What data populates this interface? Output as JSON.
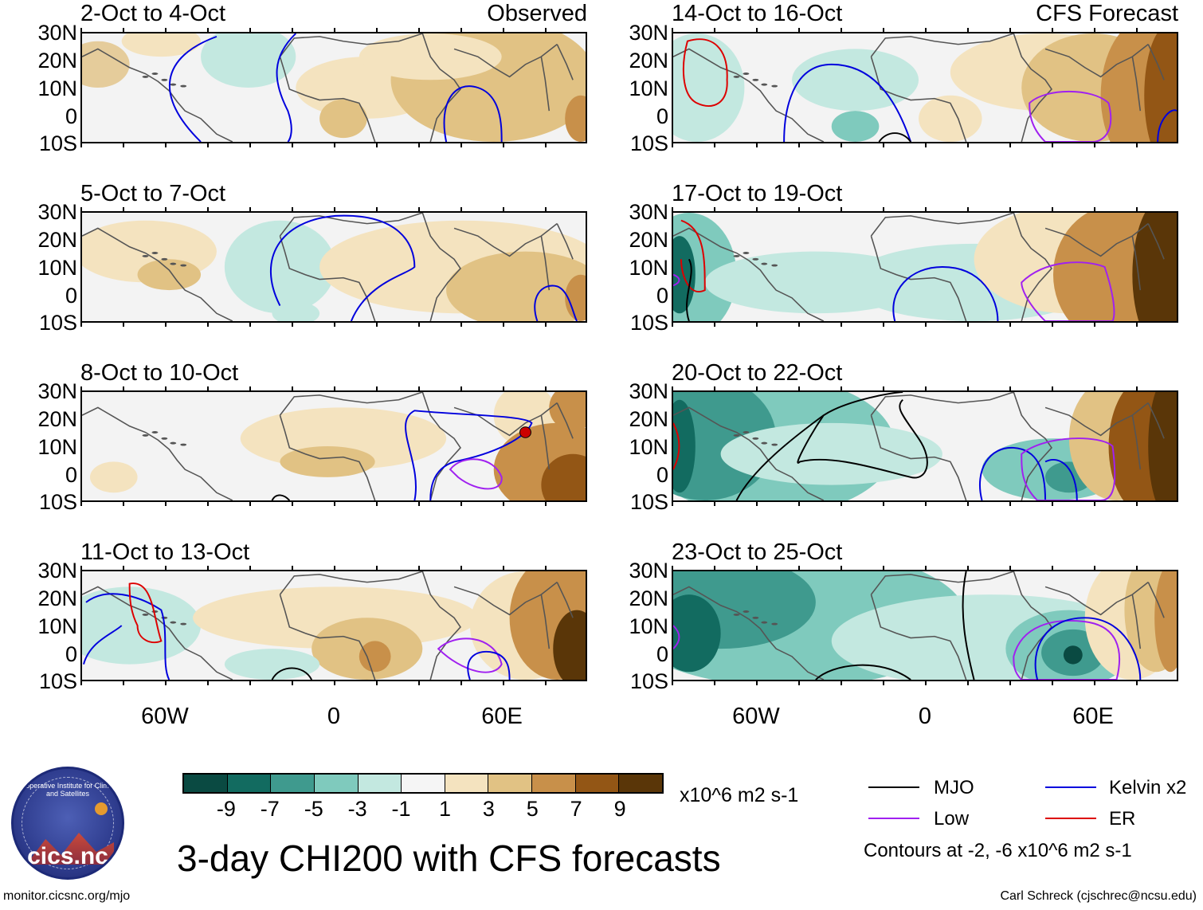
{
  "title": "3-day CHI200 with CFS forecasts",
  "panel_labels": {
    "observed": "Observed",
    "forecast": "CFS Forecast"
  },
  "panels": [
    {
      "period": "2-Oct to 4-Oct",
      "type": "observed"
    },
    {
      "period": "5-Oct to 7-Oct",
      "type": "observed"
    },
    {
      "period": "8-Oct to 10-Oct",
      "type": "observed"
    },
    {
      "period": "11-Oct to 13-Oct",
      "type": "observed"
    },
    {
      "period": "14-Oct to 16-Oct",
      "type": "forecast"
    },
    {
      "period": "17-Oct to 19-Oct",
      "type": "forecast"
    },
    {
      "period": "20-Oct to 22-Oct",
      "type": "forecast"
    },
    {
      "period": "23-Oct to 25-Oct",
      "type": "forecast"
    }
  ],
  "lat_labels": [
    "30N",
    "20N",
    "10N",
    "0",
    "10S"
  ],
  "lon_labels": [
    "60W",
    "0",
    "60E"
  ],
  "colorbar": {
    "ticks": [
      "-9",
      "-7",
      "-5",
      "-3",
      "-1",
      "1",
      "3",
      "5",
      "7",
      "9"
    ],
    "units": "x10^6 m2 s-1",
    "colors": [
      "#0a4a42",
      "#126b60",
      "#3f9a8e",
      "#7fcabd",
      "#c3e8e0",
      "#f5f5f5",
      "#f4e3bf",
      "#e1c284",
      "#c8904a",
      "#935615",
      "#5a3608"
    ]
  },
  "legend": {
    "items": [
      {
        "label": "MJO",
        "color": "#000000"
      },
      {
        "label": "Kelvin x2",
        "color": "#0000dd"
      },
      {
        "label": "Low",
        "color": "#a020f0"
      },
      {
        "label": "ER",
        "color": "#dd0000"
      }
    ],
    "contours_note": "Contours at -2, -6 x10^6 m2 s-1"
  },
  "logo_text": "cics.nc",
  "logo_arc_text": "Cooperative Institute for Climate and Satellites",
  "footer": {
    "left": "monitor.cicsnc.org/mjo",
    "right": "Carl Schreck (cjschrec@ncsu.edu)"
  }
}
